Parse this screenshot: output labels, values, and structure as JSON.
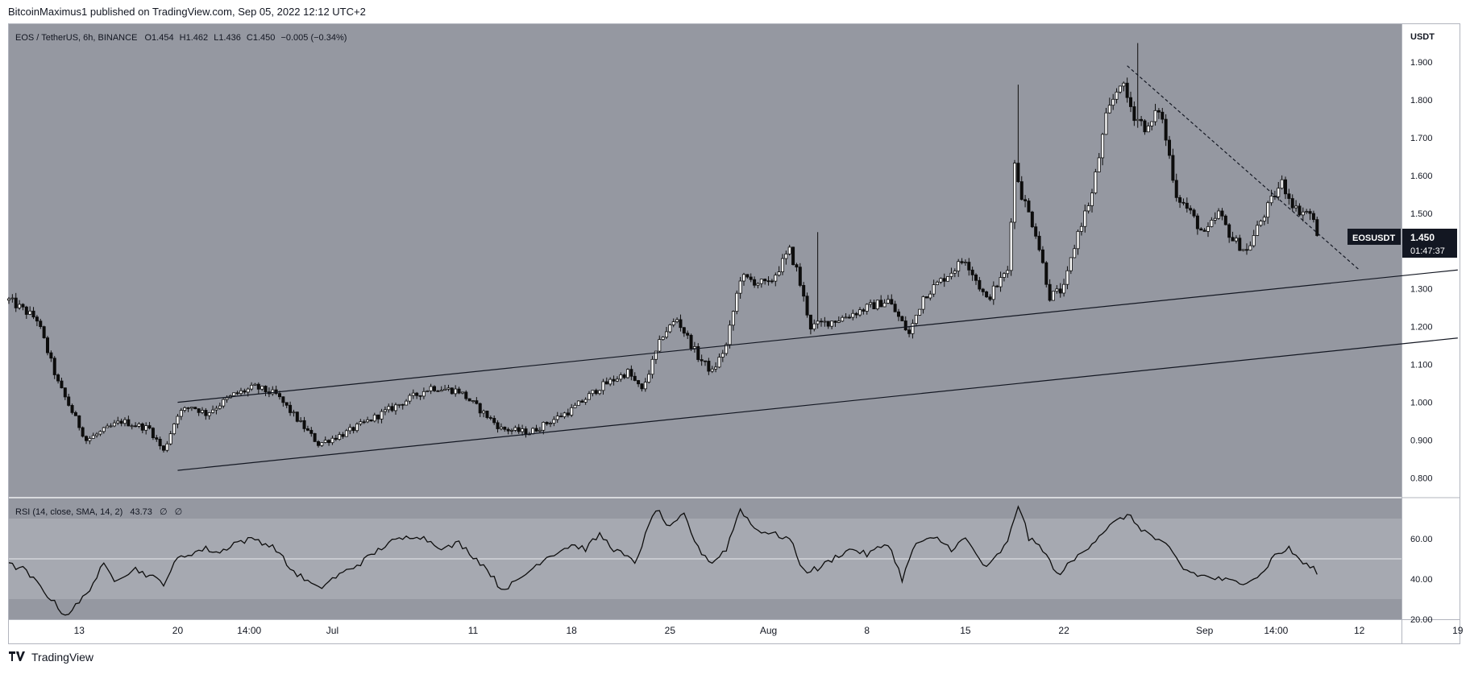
{
  "header": {
    "published_by": "BitcoinMaximus1 published on TradingView.com, Sep 05, 2022 12:12 UTC+2"
  },
  "footer": {
    "brand": "TradingView",
    "logo_icon": "tradingview-logo-icon"
  },
  "colors": {
    "pane_bg": "#9598a1",
    "rsi_band": "#a6a9b1",
    "axis_bg": "#ffffff",
    "candle": "#0d0d0d",
    "line": "#131722",
    "label_bg": "#131722"
  },
  "chart_data": [
    {
      "type": "candlestick",
      "title": "EOS / TetherUS, 6h, BINANCE",
      "ohlc_label": {
        "o_key": "O",
        "o": "1.454",
        "h_key": "H",
        "h": "1.462",
        "l_key": "L",
        "l": "1.436",
        "c_key": "C",
        "c": "1.450",
        "change": "−0.005 (−0.34%)"
      },
      "y_unit": "USDT",
      "ylim": [
        0.75,
        2.0
      ],
      "y_ticks": [
        "1.900",
        "1.800",
        "1.700",
        "1.600",
        "1.500",
        "1.400",
        "1.300",
        "1.200",
        "1.100",
        "1.000",
        "0.900",
        "0.800"
      ],
      "y_tick_values": [
        1.9,
        1.8,
        1.7,
        1.6,
        1.5,
        1.4,
        1.3,
        1.2,
        1.1,
        1.0,
        0.9,
        0.8
      ],
      "x_range_days": [
        -5,
        94
      ],
      "x_ticks": [
        {
          "label": "13",
          "day": 0
        },
        {
          "label": "20",
          "day": 7
        },
        {
          "label": "14:00",
          "day": 12.083
        },
        {
          "label": "Jul",
          "day": 18
        },
        {
          "label": "11",
          "day": 28
        },
        {
          "label": "18",
          "day": 35
        },
        {
          "label": "25",
          "day": 42
        },
        {
          "label": "Aug",
          "day": 49
        },
        {
          "label": "8",
          "day": 56
        },
        {
          "label": "15",
          "day": 63
        },
        {
          "label": "22",
          "day": 70
        },
        {
          "label": "Sep",
          "day": 80
        },
        {
          "label": "14:00",
          "day": 85.083
        },
        {
          "label": "12",
          "day": 91
        },
        {
          "label": "19",
          "day": 98
        }
      ],
      "price_anchors": [
        [
          -5,
          1.27
        ],
        [
          -3,
          1.22
        ],
        [
          -1.5,
          1.05
        ],
        [
          0.5,
          0.9
        ],
        [
          2,
          0.93
        ],
        [
          3,
          0.95
        ],
        [
          5,
          0.93
        ],
        [
          6,
          0.87
        ],
        [
          7,
          0.97
        ],
        [
          8,
          0.99
        ],
        [
          9,
          0.97
        ],
        [
          11,
          1.02
        ],
        [
          12.5,
          1.04
        ],
        [
          14,
          1.02
        ],
        [
          17,
          0.89
        ],
        [
          19,
          0.92
        ],
        [
          22,
          0.98
        ],
        [
          25,
          1.04
        ],
        [
          27,
          1.03
        ],
        [
          30,
          0.93
        ],
        [
          32,
          0.92
        ],
        [
          35,
          0.98
        ],
        [
          37,
          1.04
        ],
        [
          39,
          1.08
        ],
        [
          40,
          1.03
        ],
        [
          41.5,
          1.18
        ],
        [
          42.5,
          1.22
        ],
        [
          44,
          1.12
        ],
        [
          45,
          1.08
        ],
        [
          46,
          1.15
        ],
        [
          47,
          1.33
        ],
        [
          49,
          1.31
        ],
        [
          50.5,
          1.4
        ],
        [
          51,
          1.35
        ],
        [
          52,
          1.2
        ],
        [
          54,
          1.22
        ],
        [
          56,
          1.25
        ],
        [
          57.5,
          1.27
        ],
        [
          59,
          1.18
        ],
        [
          60,
          1.28
        ],
        [
          61.5,
          1.33
        ],
        [
          63,
          1.38
        ],
        [
          64.5,
          1.27
        ],
        [
          66,
          1.35
        ],
        [
          66.5,
          1.63
        ],
        [
          67,
          1.55
        ],
        [
          68,
          1.45
        ],
        [
          69,
          1.28
        ],
        [
          70,
          1.3
        ],
        [
          71,
          1.45
        ],
        [
          72,
          1.55
        ],
        [
          73,
          1.75
        ],
        [
          74,
          1.85
        ],
        [
          75,
          1.76
        ],
        [
          76,
          1.72
        ],
        [
          76.8,
          1.78
        ],
        [
          77.5,
          1.65
        ],
        [
          78,
          1.55
        ],
        [
          79,
          1.5
        ],
        [
          80,
          1.44
        ],
        [
          81,
          1.5
        ],
        [
          82,
          1.43
        ],
        [
          83,
          1.4
        ],
        [
          84,
          1.48
        ],
        [
          85,
          1.55
        ],
        [
          85.5,
          1.58
        ],
        [
          86.5,
          1.51
        ],
        [
          87.5,
          1.5
        ],
        [
          88,
          1.45
        ]
      ],
      "spikes": [
        {
          "day": 52.5,
          "high": 1.45
        },
        {
          "day": 66.8,
          "high": 1.84
        },
        {
          "day": 75.2,
          "high": 1.95
        },
        {
          "day": 85.5,
          "high": 1.6
        }
      ],
      "trendlines": [
        {
          "name": "channel-upper",
          "style": "solid",
          "from": [
            7,
            1.0
          ],
          "to": [
            98,
            1.35
          ]
        },
        {
          "name": "channel-lower",
          "style": "solid",
          "from": [
            7,
            0.82
          ],
          "to": [
            98,
            1.17
          ]
        },
        {
          "name": "descending-resistance",
          "style": "dashed",
          "from": [
            74.5,
            1.89
          ],
          "to": [
            91,
            1.35
          ]
        }
      ],
      "last_price_label": {
        "symbol": "EOSUSDT",
        "price": "1.450",
        "countdown": "01:47:37"
      }
    },
    {
      "type": "line",
      "title": "RSI (14, close, SMA, 14, 2)",
      "value_label": "43.73",
      "na_1": "∅",
      "na_2": "∅",
      "ylim": [
        20,
        80
      ],
      "y_ticks": [
        "60.00",
        "40.00",
        "20.00"
      ],
      "y_tick_values": [
        60,
        40,
        20
      ],
      "band": [
        30,
        70
      ],
      "midline": 50,
      "rsi_anchors": [
        [
          -5,
          47
        ],
        [
          -4,
          45
        ],
        [
          -3,
          38
        ],
        [
          -2,
          30
        ],
        [
          -1,
          22
        ],
        [
          0,
          28
        ],
        [
          1,
          38
        ],
        [
          1.7,
          47
        ],
        [
          2.5,
          40
        ],
        [
          4,
          45
        ],
        [
          6,
          38
        ],
        [
          7,
          50
        ],
        [
          8,
          53
        ],
        [
          9,
          55
        ],
        [
          10,
          53
        ],
        [
          11,
          58
        ],
        [
          12.5,
          60
        ],
        [
          14,
          55
        ],
        [
          15,
          45
        ],
        [
          17,
          35
        ],
        [
          18,
          40
        ],
        [
          20,
          48
        ],
        [
          22,
          58
        ],
        [
          24,
          62
        ],
        [
          26,
          55
        ],
        [
          27,
          58
        ],
        [
          29,
          45
        ],
        [
          30,
          35
        ],
        [
          31,
          38
        ],
        [
          33,
          50
        ],
        [
          35,
          57
        ],
        [
          36,
          55
        ],
        [
          37,
          62
        ],
        [
          38,
          55
        ],
        [
          39.5,
          48
        ],
        [
          41,
          75
        ],
        [
          42,
          65
        ],
        [
          43,
          72
        ],
        [
          44,
          55
        ],
        [
          45,
          48
        ],
        [
          46,
          55
        ],
        [
          47,
          75
        ],
        [
          48,
          65
        ],
        [
          49.5,
          62
        ],
        [
          50.5,
          60
        ],
        [
          51.5,
          44
        ],
        [
          52.5,
          45
        ],
        [
          54,
          52
        ],
        [
          55,
          55
        ],
        [
          56,
          52
        ],
        [
          57.5,
          58
        ],
        [
          58.5,
          40
        ],
        [
          59.5,
          58
        ],
        [
          61,
          60
        ],
        [
          62,
          55
        ],
        [
          63,
          60
        ],
        [
          64.5,
          45
        ],
        [
          66,
          58
        ],
        [
          66.8,
          78
        ],
        [
          67.5,
          60
        ],
        [
          68.5,
          55
        ],
        [
          69.5,
          42
        ],
        [
          70.5,
          48
        ],
        [
          72,
          58
        ],
        [
          73,
          65
        ],
        [
          74.5,
          72
        ],
        [
          75.5,
          65
        ],
        [
          76.5,
          60
        ],
        [
          77.5,
          55
        ],
        [
          78.5,
          45
        ],
        [
          79.5,
          42
        ],
        [
          81,
          40
        ],
        [
          82.5,
          38
        ],
        [
          84,
          42
        ],
        [
          85,
          52
        ],
        [
          86,
          55
        ],
        [
          87,
          48
        ],
        [
          88,
          43.73
        ]
      ]
    }
  ]
}
